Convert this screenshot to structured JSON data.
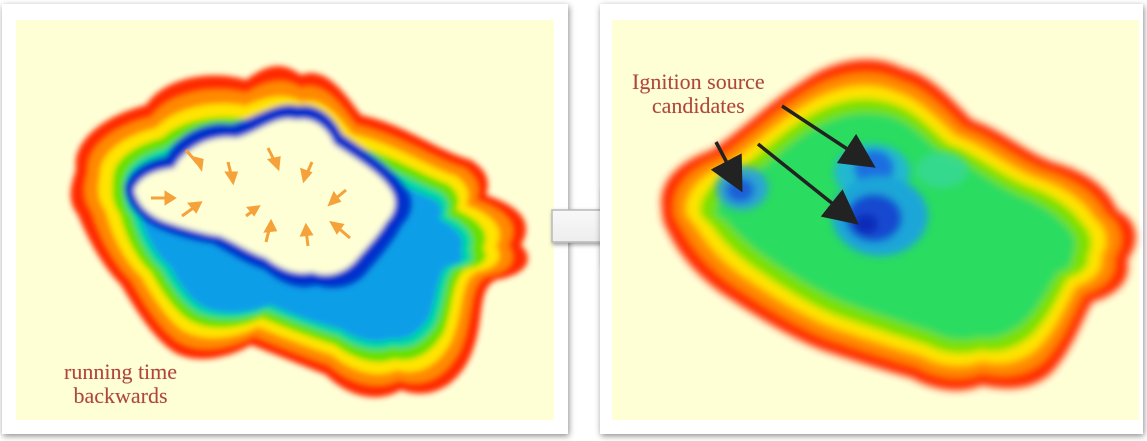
{
  "panels": {
    "left": {
      "caption_line1": "running time",
      "caption_line2": "backwards"
    },
    "right": {
      "caption_line1": "Ignition source",
      "caption_line2": "candidates"
    }
  },
  "colors": {
    "background": "#ffffd6",
    "caption": "#b2443c",
    "outer_ring": "#ff2200",
    "inner_ring": "#0033cc",
    "arrow": "#f5a23a"
  },
  "icons": [
    "right-arrow-icon"
  ]
}
